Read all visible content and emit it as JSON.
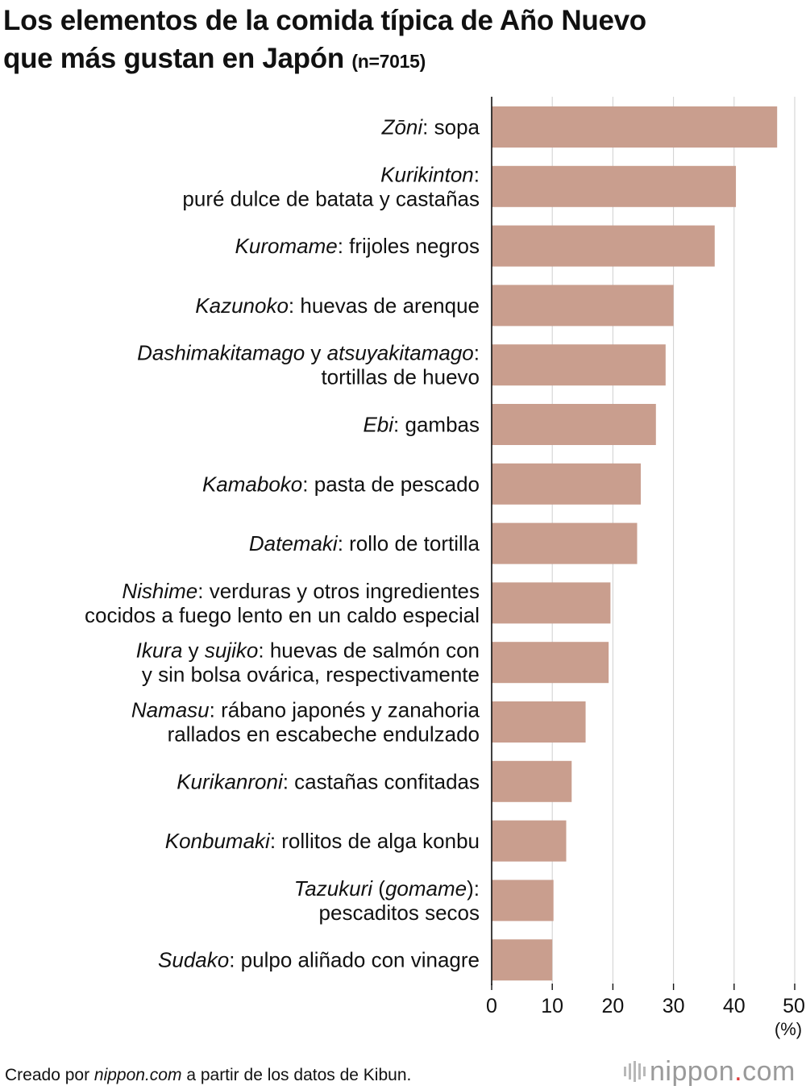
{
  "title": {
    "line1": "Los elementos de la comida típica de Año Nuevo",
    "line2": "que más gustan en Japón",
    "sample": "(n=7015)"
  },
  "chart_data": {
    "type": "bar",
    "orientation": "horizontal",
    "title": "Los elementos de la comida típica de Año Nuevo que más gustan en Japón (n=7015)",
    "xlabel": "(%)",
    "ylabel": "",
    "xlim": [
      0,
      50
    ],
    "xticks": [
      0,
      10,
      20,
      30,
      40,
      50
    ],
    "grid": true,
    "bar_color": "#c99e8e",
    "categories": [
      [
        [
          {
            "t": "Zōni",
            "i": true
          },
          {
            "t": ": sopa",
            "i": false
          }
        ]
      ],
      [
        [
          {
            "t": "Kurikinton",
            "i": true
          },
          {
            "t": ":",
            "i": false
          }
        ],
        [
          {
            "t": "puré dulce de batata y castañas",
            "i": false
          }
        ]
      ],
      [
        [
          {
            "t": "Kuromame",
            "i": true
          },
          {
            "t": ": frijoles negros",
            "i": false
          }
        ]
      ],
      [
        [
          {
            "t": "Kazunoko",
            "i": true
          },
          {
            "t": ": huevas de arenque",
            "i": false
          }
        ]
      ],
      [
        [
          {
            "t": "Dashimakitamago",
            "i": true
          },
          {
            "t": " y ",
            "i": false
          },
          {
            "t": "atsuyakitamago",
            "i": true
          },
          {
            "t": ":",
            "i": false
          }
        ],
        [
          {
            "t": "tortillas de huevo",
            "i": false
          }
        ]
      ],
      [
        [
          {
            "t": "Ebi",
            "i": true
          },
          {
            "t": ": gambas",
            "i": false
          }
        ]
      ],
      [
        [
          {
            "t": "Kamaboko",
            "i": true
          },
          {
            "t": ": pasta de pescado",
            "i": false
          }
        ]
      ],
      [
        [
          {
            "t": "Datemaki",
            "i": true
          },
          {
            "t": ": rollo de tortilla",
            "i": false
          }
        ]
      ],
      [
        [
          {
            "t": "Nishime",
            "i": true
          },
          {
            "t": ": verduras y otros ingredientes",
            "i": false
          }
        ],
        [
          {
            "t": "cocidos a fuego lento en un caldo especial",
            "i": false
          }
        ]
      ],
      [
        [
          {
            "t": "Ikura",
            "i": true
          },
          {
            "t": " y ",
            "i": false
          },
          {
            "t": "sujiko",
            "i": true
          },
          {
            "t": ": huevas de salmón con",
            "i": false
          }
        ],
        [
          {
            "t": "y sin bolsa ovárica, respectivamente",
            "i": false
          }
        ]
      ],
      [
        [
          {
            "t": "Namasu",
            "i": true
          },
          {
            "t": ": rábano japonés y zanahoria",
            "i": false
          }
        ],
        [
          {
            "t": "rallados en escabeche endulzado",
            "i": false
          }
        ]
      ],
      [
        [
          {
            "t": "Kurikanroni",
            "i": true
          },
          {
            "t": ": castañas confitadas",
            "i": false
          }
        ]
      ],
      [
        [
          {
            "t": "Konbumaki",
            "i": true
          },
          {
            "t": ": rollitos de alga konbu",
            "i": false
          }
        ]
      ],
      [
        [
          {
            "t": "Tazukuri",
            "i": true
          },
          {
            "t": " (",
            "i": false
          },
          {
            "t": "gomame",
            "i": true
          },
          {
            "t": "):",
            "i": false
          }
        ],
        [
          {
            "t": "pescaditos secos",
            "i": false
          }
        ]
      ],
      [
        [
          {
            "t": "Sudako",
            "i": true
          },
          {
            "t": ": pulpo aliñado con vinagre",
            "i": false
          }
        ]
      ]
    ],
    "values": [
      47.1,
      40.3,
      36.8,
      30.0,
      28.7,
      27.1,
      24.6,
      24.0,
      19.6,
      19.3,
      15.5,
      13.2,
      12.3,
      10.2,
      10.0
    ]
  },
  "footer": {
    "prefix": "Creado por ",
    "site": "nippon.com",
    "suffix": " a partir de los datos de Kibun."
  },
  "brand": {
    "name": "nippon",
    "dot": ".",
    "tld": "com"
  }
}
